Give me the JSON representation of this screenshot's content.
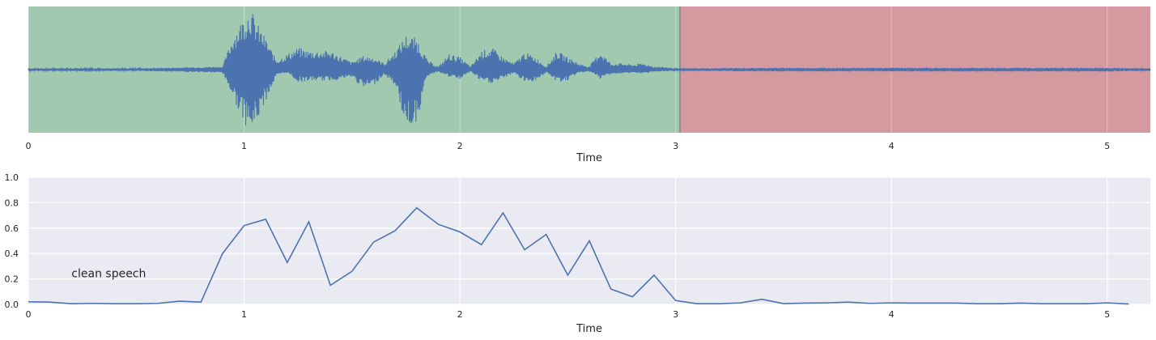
{
  "chart_data": [
    {
      "type": "area",
      "panel": "waveform",
      "xlabel": "Time",
      "xlim": [
        0,
        5.2
      ],
      "x_ticks": [
        0,
        1,
        2,
        3,
        4,
        5
      ],
      "y_ticks_shown": false,
      "regions": [
        {
          "from": 0,
          "to": 3.02,
          "color": "#a1c9af"
        },
        {
          "from": 3.02,
          "to": 5.2,
          "color": "#d59a9f"
        }
      ],
      "envelope": {
        "x": [
          0,
          0.5,
          0.9,
          0.95,
          1.0,
          1.03,
          1.05,
          1.1,
          1.15,
          1.2,
          1.25,
          1.3,
          1.4,
          1.5,
          1.55,
          1.6,
          1.65,
          1.7,
          1.75,
          1.8,
          1.85,
          1.9,
          1.95,
          2.0,
          2.05,
          2.1,
          2.15,
          2.2,
          2.25,
          2.3,
          2.35,
          2.4,
          2.45,
          2.5,
          2.55,
          2.6,
          2.65,
          2.7,
          2.75,
          2.8,
          2.85,
          2.9,
          2.95,
          3.0,
          3.02,
          3.5,
          4.0,
          4.5,
          5.0,
          5.2
        ],
        "top": [
          0.02,
          0.02,
          0.05,
          0.55,
          0.85,
          1.0,
          0.8,
          0.5,
          0.15,
          0.25,
          0.35,
          0.3,
          0.3,
          0.12,
          0.22,
          0.2,
          0.1,
          0.3,
          0.55,
          0.5,
          0.15,
          0.05,
          0.25,
          0.2,
          0.05,
          0.3,
          0.35,
          0.2,
          0.1,
          0.28,
          0.2,
          0.05,
          0.3,
          0.2,
          0.1,
          0.05,
          0.3,
          0.1,
          0.1,
          0.08,
          0.1,
          0.05,
          0.04,
          0.02,
          0.02,
          0.03,
          0.03,
          0.03,
          0.03,
          0.02
        ],
        "bottom": [
          -0.02,
          -0.02,
          -0.05,
          -0.45,
          -0.85,
          -1.0,
          -0.9,
          -0.5,
          -0.1,
          -0.05,
          -0.2,
          -0.18,
          -0.18,
          -0.12,
          -0.3,
          -0.25,
          -0.08,
          -0.25,
          -0.9,
          -0.85,
          -0.1,
          -0.03,
          -0.12,
          -0.15,
          -0.03,
          -0.2,
          -0.22,
          -0.15,
          -0.05,
          -0.2,
          -0.18,
          -0.05,
          -0.2,
          -0.18,
          -0.05,
          -0.03,
          -0.15,
          -0.07,
          -0.07,
          -0.05,
          -0.07,
          -0.03,
          -0.03,
          -0.02,
          -0.02,
          -0.03,
          -0.03,
          -0.03,
          -0.03,
          -0.02
        ]
      },
      "color": "#4c72b0"
    },
    {
      "type": "line",
      "panel": "probability",
      "xlabel": "Time",
      "xlim": [
        0,
        5.2
      ],
      "ylim": [
        0,
        1.0
      ],
      "x_ticks": [
        0,
        1,
        2,
        3,
        4,
        5
      ],
      "y_ticks": [
        "0.0",
        "0.2",
        "0.4",
        "0.6",
        "0.8",
        "1.0"
      ],
      "grid": true,
      "background": "#eaeaf2",
      "color": "#4c72b0",
      "annotation": {
        "text": "clean speech",
        "x": 0.2,
        "y": 0.22
      },
      "x": [
        0,
        0.1,
        0.2,
        0.3,
        0.4,
        0.5,
        0.6,
        0.7,
        0.8,
        0.9,
        1.0,
        1.1,
        1.2,
        1.3,
        1.4,
        1.5,
        1.6,
        1.7,
        1.8,
        1.9,
        2.0,
        2.1,
        2.2,
        2.3,
        2.4,
        2.5,
        2.6,
        2.7,
        2.8,
        2.9,
        3.0,
        3.1,
        3.2,
        3.3,
        3.4,
        3.5,
        3.6,
        3.7,
        3.8,
        3.9,
        4.0,
        4.1,
        4.2,
        4.3,
        4.4,
        4.5,
        4.6,
        4.7,
        4.8,
        4.9,
        5.0,
        5.1
      ],
      "y": [
        0.02,
        0.018,
        0.005,
        0.008,
        0.005,
        0.005,
        0.008,
        0.025,
        0.018,
        0.4,
        0.62,
        0.67,
        0.33,
        0.65,
        0.15,
        0.26,
        0.49,
        0.58,
        0.76,
        0.63,
        0.57,
        0.47,
        0.72,
        0.43,
        0.55,
        0.23,
        0.5,
        0.12,
        0.06,
        0.23,
        0.03,
        0.005,
        0.005,
        0.012,
        0.04,
        0.006,
        0.01,
        0.012,
        0.018,
        0.008,
        0.012,
        0.01,
        0.01,
        0.01,
        0.005,
        0.005,
        0.01,
        0.005,
        0.005,
        0.005,
        0.012,
        0.003
      ]
    }
  ]
}
